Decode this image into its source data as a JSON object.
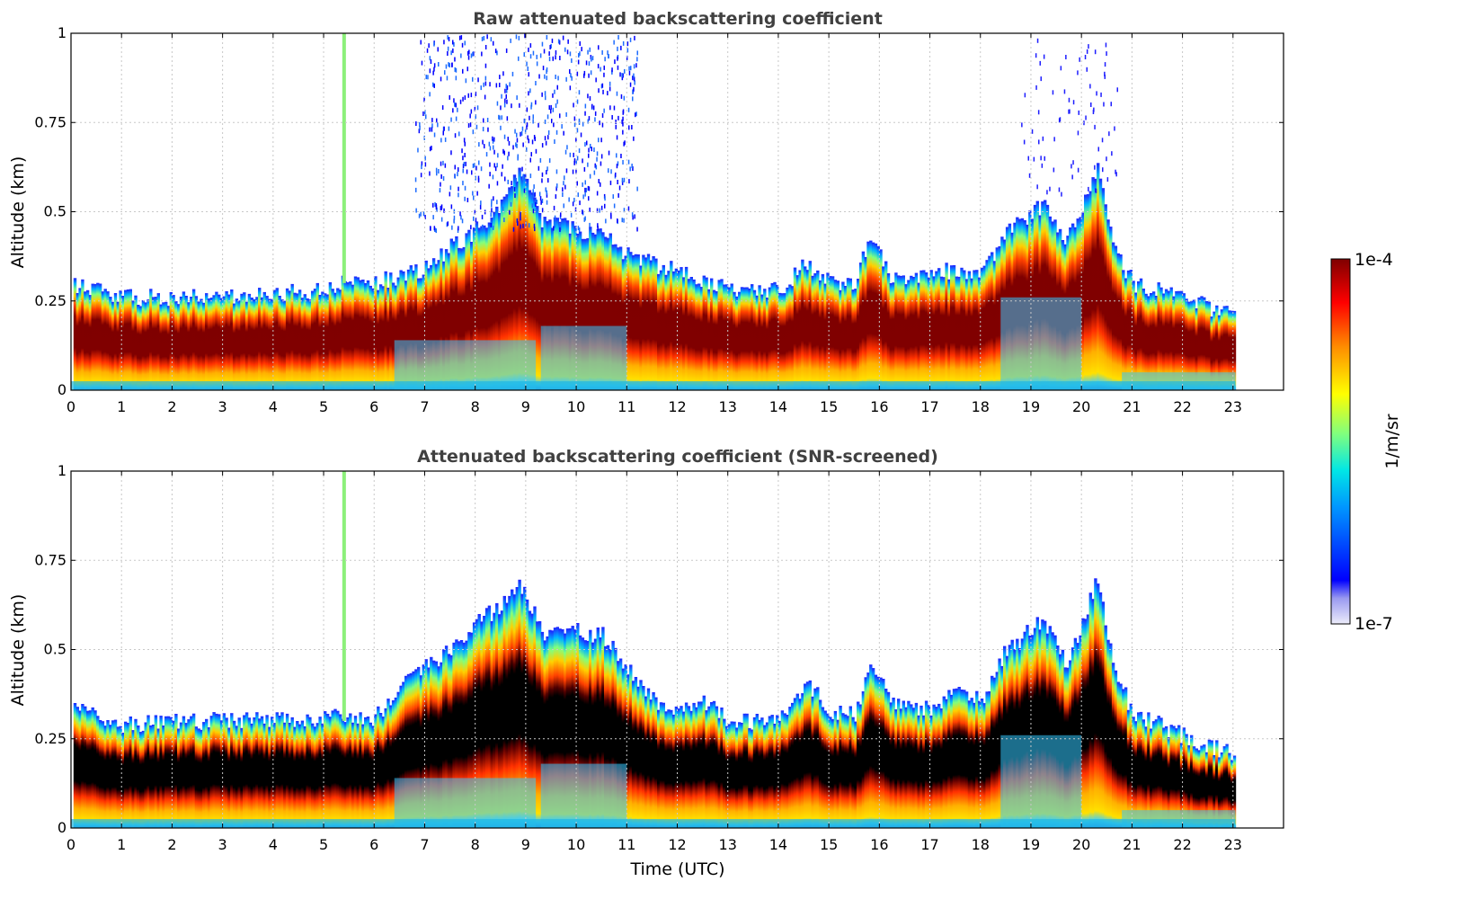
{
  "chart_data": [
    {
      "type": "heatmap",
      "title": "Raw attenuated backscattering coefficient",
      "xlabel": "",
      "ylabel": "Altitude (km)",
      "xlim": [
        0,
        24
      ],
      "ylim": [
        0,
        1
      ],
      "x_ticks": [
        "0",
        "1",
        "2",
        "3",
        "4",
        "5",
        "6",
        "7",
        "8",
        "9",
        "10",
        "11",
        "12",
        "13",
        "14",
        "15",
        "16",
        "17",
        "18",
        "19",
        "20",
        "21",
        "22",
        "23"
      ],
      "y_ticks": [
        "0",
        "0.25",
        "0.5",
        "0.75",
        "1"
      ],
      "grid": true,
      "data_end_time": 23.05,
      "layer_top_km": [
        {
          "t": 0.0,
          "v": 0.3
        },
        {
          "t": 1.0,
          "v": 0.26
        },
        {
          "t": 2.0,
          "v": 0.26
        },
        {
          "t": 3.0,
          "v": 0.26
        },
        {
          "t": 4.0,
          "v": 0.27
        },
        {
          "t": 5.0,
          "v": 0.28
        },
        {
          "t": 5.45,
          "v": 0.3
        },
        {
          "t": 6.0,
          "v": 0.3
        },
        {
          "t": 7.0,
          "v": 0.34
        },
        {
          "t": 7.5,
          "v": 0.4
        },
        {
          "t": 8.0,
          "v": 0.45
        },
        {
          "t": 8.5,
          "v": 0.52
        },
        {
          "t": 8.9,
          "v": 0.62
        },
        {
          "t": 9.3,
          "v": 0.48
        },
        {
          "t": 10.0,
          "v": 0.45
        },
        {
          "t": 10.5,
          "v": 0.44
        },
        {
          "t": 11.0,
          "v": 0.38
        },
        {
          "t": 12.0,
          "v": 0.33
        },
        {
          "t": 13.0,
          "v": 0.28
        },
        {
          "t": 14.0,
          "v": 0.28
        },
        {
          "t": 14.5,
          "v": 0.35
        },
        {
          "t": 15.0,
          "v": 0.3
        },
        {
          "t": 15.5,
          "v": 0.3
        },
        {
          "t": 15.8,
          "v": 0.43
        },
        {
          "t": 16.2,
          "v": 0.32
        },
        {
          "t": 17.0,
          "v": 0.32
        },
        {
          "t": 17.5,
          "v": 0.34
        },
        {
          "t": 18.0,
          "v": 0.32
        },
        {
          "t": 18.5,
          "v": 0.44
        },
        {
          "t": 19.2,
          "v": 0.52
        },
        {
          "t": 19.7,
          "v": 0.42
        },
        {
          "t": 20.3,
          "v": 0.62
        },
        {
          "t": 20.6,
          "v": 0.4
        },
        {
          "t": 21.0,
          "v": 0.3
        },
        {
          "t": 22.0,
          "v": 0.26
        },
        {
          "t": 23.05,
          "v": 0.2
        }
      ],
      "core_center_km": [
        {
          "t": 0.0,
          "v": 0.18
        },
        {
          "t": 1.0,
          "v": 0.14
        },
        {
          "t": 3.0,
          "v": 0.15
        },
        {
          "t": 5.0,
          "v": 0.16
        },
        {
          "t": 6.5,
          "v": 0.19
        },
        {
          "t": 7.5,
          "v": 0.24
        },
        {
          "t": 8.5,
          "v": 0.3
        },
        {
          "t": 9.0,
          "v": 0.4
        },
        {
          "t": 10.0,
          "v": 0.32
        },
        {
          "t": 11.0,
          "v": 0.28
        },
        {
          "t": 12.0,
          "v": 0.24
        },
        {
          "t": 13.0,
          "v": 0.2
        },
        {
          "t": 14.0,
          "v": 0.16
        },
        {
          "t": 15.0,
          "v": 0.19
        },
        {
          "t": 16.0,
          "v": 0.22
        },
        {
          "t": 17.0,
          "v": 0.2
        },
        {
          "t": 18.0,
          "v": 0.2
        },
        {
          "t": 19.0,
          "v": 0.3
        },
        {
          "t": 20.0,
          "v": 0.28
        },
        {
          "t": 20.4,
          "v": 0.4
        },
        {
          "t": 21.0,
          "v": 0.24
        },
        {
          "t": 22.0,
          "v": 0.16
        },
        {
          "t": 23.05,
          "v": 0.11
        }
      ]
    },
    {
      "type": "heatmap",
      "title": "Attenuated backscattering coefficient (SNR-screened)",
      "xlabel": "Time (UTC)",
      "ylabel": "Altitude (km)",
      "xlim": [
        0,
        24
      ],
      "ylim": [
        0,
        1
      ],
      "x_ticks": [
        "0",
        "1",
        "2",
        "3",
        "4",
        "5",
        "6",
        "7",
        "8",
        "9",
        "10",
        "11",
        "12",
        "13",
        "14",
        "15",
        "16",
        "17",
        "18",
        "19",
        "20",
        "21",
        "22",
        "23"
      ],
      "y_ticks": [
        "0",
        "0.25",
        "0.5",
        "0.75",
        "1"
      ],
      "grid": true,
      "data_end_time": 23.05,
      "layer_top_km": [
        {
          "t": 0.0,
          "v": 0.34
        },
        {
          "t": 1.0,
          "v": 0.29
        },
        {
          "t": 2.0,
          "v": 0.3
        },
        {
          "t": 3.0,
          "v": 0.3
        },
        {
          "t": 4.0,
          "v": 0.3
        },
        {
          "t": 5.0,
          "v": 0.31
        },
        {
          "t": 6.0,
          "v": 0.31
        },
        {
          "t": 6.5,
          "v": 0.4
        },
        {
          "t": 7.0,
          "v": 0.45
        },
        {
          "t": 7.5,
          "v": 0.5
        },
        {
          "t": 8.0,
          "v": 0.58
        },
        {
          "t": 8.5,
          "v": 0.62
        },
        {
          "t": 8.9,
          "v": 0.68
        },
        {
          "t": 9.3,
          "v": 0.55
        },
        {
          "t": 10.0,
          "v": 0.55
        },
        {
          "t": 10.5,
          "v": 0.54
        },
        {
          "t": 11.0,
          "v": 0.45
        },
        {
          "t": 11.5,
          "v": 0.36
        },
        {
          "t": 12.0,
          "v": 0.32
        },
        {
          "t": 12.5,
          "v": 0.36
        },
        {
          "t": 13.0,
          "v": 0.3
        },
        {
          "t": 14.0,
          "v": 0.3
        },
        {
          "t": 14.6,
          "v": 0.4
        },
        {
          "t": 15.0,
          "v": 0.32
        },
        {
          "t": 15.5,
          "v": 0.32
        },
        {
          "t": 15.8,
          "v": 0.46
        },
        {
          "t": 16.3,
          "v": 0.34
        },
        {
          "t": 17.0,
          "v": 0.34
        },
        {
          "t": 17.5,
          "v": 0.38
        },
        {
          "t": 18.0,
          "v": 0.36
        },
        {
          "t": 18.5,
          "v": 0.5
        },
        {
          "t": 19.2,
          "v": 0.58
        },
        {
          "t": 19.7,
          "v": 0.46
        },
        {
          "t": 20.3,
          "v": 0.7
        },
        {
          "t": 20.6,
          "v": 0.46
        },
        {
          "t": 21.0,
          "v": 0.32
        },
        {
          "t": 22.0,
          "v": 0.26
        },
        {
          "t": 23.05,
          "v": 0.2
        }
      ],
      "core_center_km": [
        {
          "t": 0.0,
          "v": 0.18
        },
        {
          "t": 1.0,
          "v": 0.14
        },
        {
          "t": 3.0,
          "v": 0.15
        },
        {
          "t": 5.0,
          "v": 0.16
        },
        {
          "t": 6.5,
          "v": 0.19
        },
        {
          "t": 7.5,
          "v": 0.24
        },
        {
          "t": 8.5,
          "v": 0.3
        },
        {
          "t": 9.0,
          "v": 0.4
        },
        {
          "t": 10.0,
          "v": 0.32
        },
        {
          "t": 11.0,
          "v": 0.28
        },
        {
          "t": 12.0,
          "v": 0.24
        },
        {
          "t": 13.0,
          "v": 0.2
        },
        {
          "t": 14.0,
          "v": 0.16
        },
        {
          "t": 15.0,
          "v": 0.19
        },
        {
          "t": 16.0,
          "v": 0.22
        },
        {
          "t": 17.0,
          "v": 0.2
        },
        {
          "t": 18.0,
          "v": 0.2
        },
        {
          "t": 19.0,
          "v": 0.3
        },
        {
          "t": 20.0,
          "v": 0.28
        },
        {
          "t": 20.4,
          "v": 0.4
        },
        {
          "t": 21.0,
          "v": 0.24
        },
        {
          "t": 22.0,
          "v": 0.16
        },
        {
          "t": 23.05,
          "v": 0.11
        }
      ]
    }
  ],
  "colorbar": {
    "label": "1/m/sr",
    "max_label": "1e-4",
    "min_label": "1e-7",
    "colormap": "jet",
    "colors": [
      "#00007f",
      "#0000ff",
      "#007fff",
      "#00ffff",
      "#7fff7f",
      "#ffff00",
      "#ff7f00",
      "#ff0000",
      "#7f0000"
    ]
  },
  "colors": {
    "title": "#404040",
    "background": "#ffffff",
    "grid": "#c8c8c8",
    "snr_core": "#000000"
  }
}
